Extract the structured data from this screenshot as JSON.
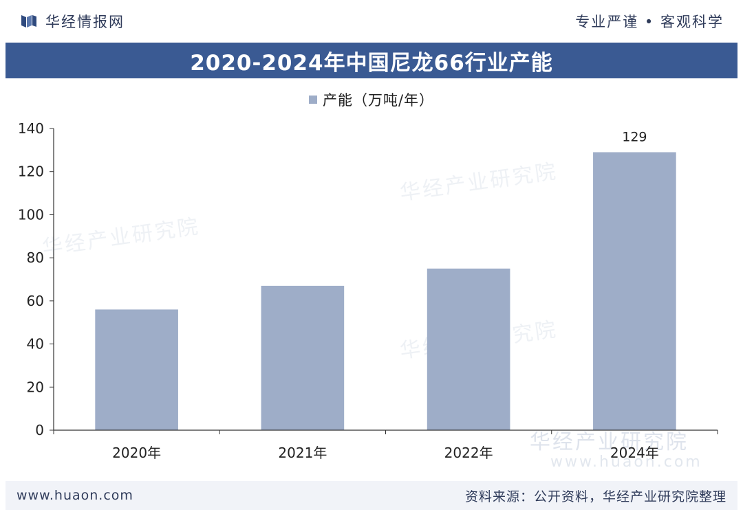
{
  "header": {
    "brand_name": "华经情报网",
    "slogan": "专业严谨 • 客观科学"
  },
  "watermark_text": "华经产业研究院",
  "watermark_url": "www.huaon.com",
  "footer": {
    "url": "www.huaon.com",
    "source": "资料来源：公开资料，华经产业研究院整理"
  },
  "colors": {
    "title_bar": "#3a5a93",
    "bar": "#9eadc8",
    "footer_bg": "#f1f3f8"
  },
  "chart_data": {
    "type": "bar",
    "title": "2020-2024年中国尼龙66行业产能",
    "categories": [
      "2020年",
      "2021年",
      "2022年",
      "2024年"
    ],
    "series": [
      {
        "name": "产能（万吨/年）",
        "values": [
          56,
          67,
          75,
          129
        ]
      }
    ],
    "data_labels": [
      "",
      "",
      "",
      "129"
    ],
    "ylim": [
      0,
      140
    ],
    "yticks": [
      0,
      20,
      40,
      60,
      80,
      100,
      120,
      140
    ],
    "xlabel": "",
    "ylabel": "",
    "grid": false,
    "legend": "top-center"
  }
}
